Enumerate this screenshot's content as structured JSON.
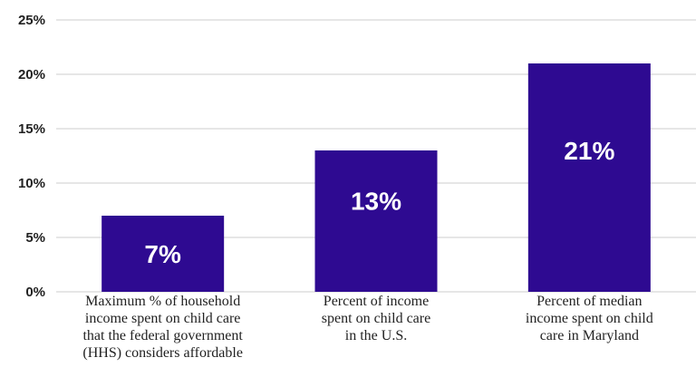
{
  "chart_data": {
    "type": "bar",
    "categories": [
      "Maximum % of household\nincome spent on child care\nthat the federal government\n(HHS) considers affordable",
      "Percent of income\nspent on child care\nin the U.S.",
      "Percent of median\nincome spent on child\ncare in Maryland"
    ],
    "values": [
      7,
      13,
      21
    ],
    "data_labels": [
      "7%",
      "13%",
      "21%"
    ],
    "yticks": [
      "0%",
      "5%",
      "10%",
      "15%",
      "20%",
      "25%"
    ],
    "ylim": [
      0,
      25
    ],
    "grid": true,
    "bar_color": "#2e0a91",
    "grid_color": "#cccccc"
  }
}
